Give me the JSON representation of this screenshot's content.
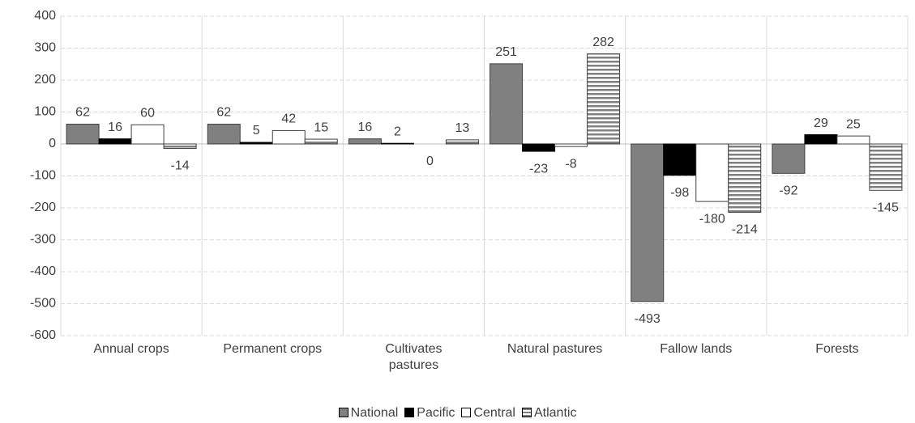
{
  "chart_data": {
    "type": "bar",
    "categories": [
      "Annual crops",
      "Permanent crops",
      "Cultivates pastures",
      "Natural pastures",
      "Fallow lands",
      "Forests"
    ],
    "series": [
      {
        "name": "National",
        "color": "#808080",
        "values": [
          62,
          62,
          16,
          251,
          -493,
          -92
        ]
      },
      {
        "name": "Pacific",
        "color": "#000000",
        "values": [
          16,
          5,
          2,
          -23,
          -98,
          29
        ]
      },
      {
        "name": "Central",
        "color": "#ffffff",
        "values": [
          60,
          42,
          0,
          -8,
          -180,
          25
        ]
      },
      {
        "name": "Atlantic",
        "color": "#808080",
        "pattern": "horizontal-stripes",
        "values": [
          -14,
          15,
          13,
          282,
          -214,
          -145
        ]
      }
    ],
    "ylim": [
      -600,
      400
    ],
    "yticks": [
      -600,
      -500,
      -400,
      -300,
      -200,
      -100,
      0,
      100,
      200,
      300,
      400
    ],
    "grid": true,
    "legend": "bottom"
  }
}
